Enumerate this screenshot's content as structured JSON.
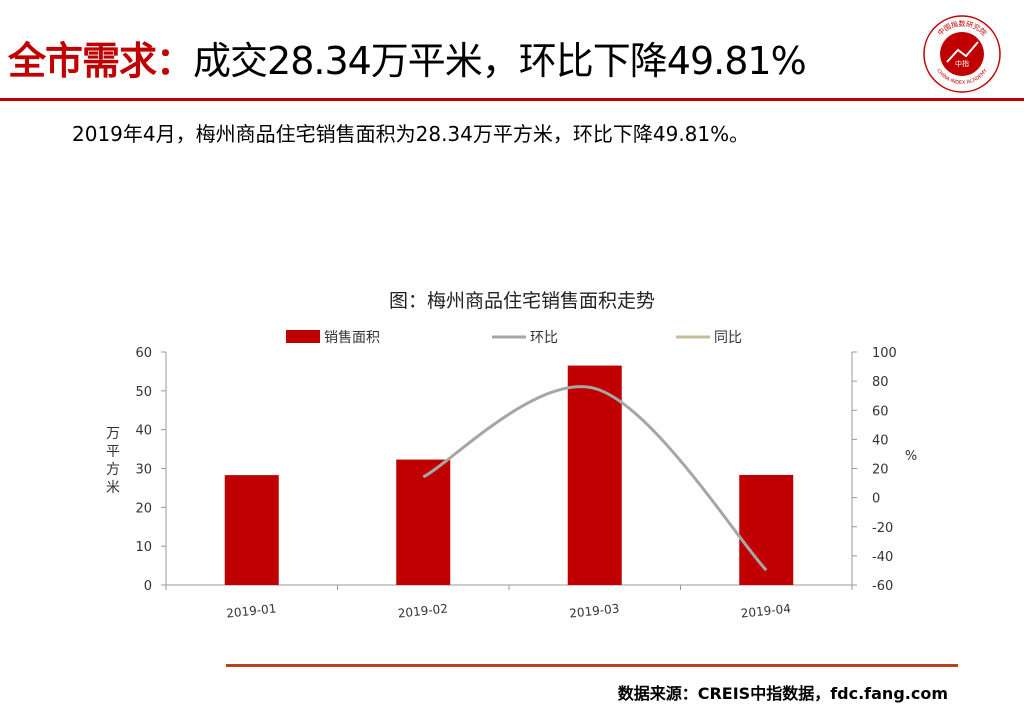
{
  "header": {
    "title_strong": "全市需求：",
    "title_rest": "成交28.34万平米，环比下降49.81%",
    "accent_color": "#c00000"
  },
  "summary": "2019年4月，梅州商品住宅销售面积为28.34万平方米，环比下降49.81%。",
  "logo": {
    "icon": "china-index-academy-seal-icon",
    "text_top": "中国指数研究院",
    "text_bottom": "CHINA INDEX ACADEMY",
    "text_center": "中指"
  },
  "source": "数据来源：CREIS中指数据，fdc.fang.com",
  "chart_data": {
    "type": "bar",
    "title": "图：梅州商品住宅销售面积走势",
    "categories": [
      "2019-01",
      "2019-02",
      "2019-03",
      "2019-04"
    ],
    "series": [
      {
        "name": "销售面积",
        "type": "bar",
        "axis": "left",
        "color": "#c00000",
        "values": [
          28.3,
          32.3,
          56.5,
          28.34
        ]
      },
      {
        "name": "环比",
        "type": "line",
        "axis": "right",
        "color": "#a6a6a6",
        "values": [
          null,
          14.2,
          75,
          -49.81
        ]
      },
      {
        "name": "同比",
        "type": "line",
        "axis": "right",
        "color": "#c4bd97",
        "values": [
          null,
          null,
          null,
          null
        ]
      }
    ],
    "ylabel": "万平方米",
    "ylim": [
      0,
      60
    ],
    "yticks": [
      0,
      10,
      20,
      30,
      40,
      50,
      60
    ],
    "y2label": "%",
    "y2lim": [
      -60,
      100
    ],
    "y2ticks": [
      -60,
      -40,
      -20,
      0,
      20,
      40,
      60,
      80,
      100
    ],
    "legend_position": "top",
    "grid": false
  }
}
